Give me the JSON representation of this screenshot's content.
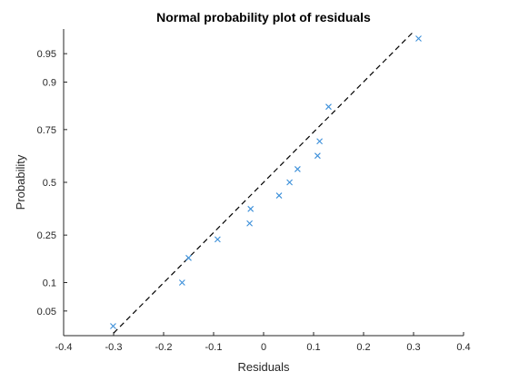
{
  "chart_data": {
    "type": "scatter",
    "title": "Normal probability plot of residuals",
    "xlabel": "Residuals",
    "ylabel": "Probability",
    "xlim": [
      -0.4,
      0.4
    ],
    "x_ticks": [
      -0.4,
      -0.3,
      -0.2,
      -0.1,
      0,
      0.1,
      0.2,
      0.3,
      0.4
    ],
    "x_tick_labels": [
      "-0.4",
      "-0.3",
      "-0.2",
      "-0.1",
      "0",
      "0.1",
      "0.2",
      "0.3",
      "0.4"
    ],
    "y_scale": "normal-probability",
    "ylim": [
      0.025,
      0.975
    ],
    "y_ticks": [
      0.05,
      0.1,
      0.25,
      0.5,
      0.75,
      0.9,
      0.95
    ],
    "y_tick_labels": [
      "0.05",
      "0.1",
      "0.25",
      "0.5",
      "0.75",
      "0.9",
      "0.95"
    ],
    "grid": false,
    "marker": "x",
    "marker_color": "#3b8fd9",
    "points": [
      {
        "x": -0.301,
        "y": 0.033
      },
      {
        "x": -0.163,
        "y": 0.1
      },
      {
        "x": -0.15,
        "y": 0.167
      },
      {
        "x": -0.092,
        "y": 0.233
      },
      {
        "x": -0.028,
        "y": 0.3
      },
      {
        "x": -0.026,
        "y": 0.367
      },
      {
        "x": 0.031,
        "y": 0.433
      },
      {
        "x": 0.052,
        "y": 0.5
      },
      {
        "x": 0.068,
        "y": 0.567
      },
      {
        "x": 0.108,
        "y": 0.633
      },
      {
        "x": 0.112,
        "y": 0.7
      },
      {
        "x": 0.13,
        "y": 0.833
      },
      {
        "x": 0.31,
        "y": 0.967
      }
    ],
    "reference_line": {
      "style": "dashed",
      "color": "#000000",
      "x": [
        -0.3,
        0.3
      ],
      "y": [
        0.027,
        0.973
      ]
    }
  }
}
